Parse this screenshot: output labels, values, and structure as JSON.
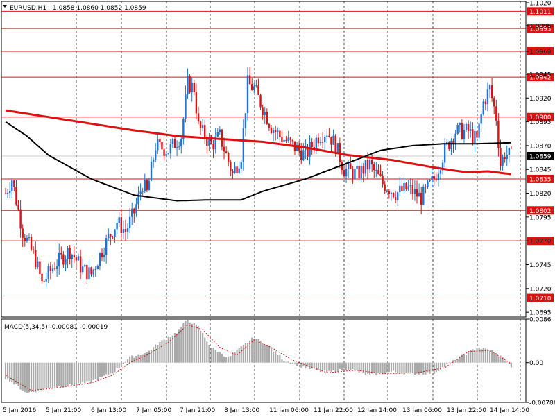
{
  "header": {
    "symbol": "EURUSD,H1",
    "ohlc": "1.0858 1.0860 1.0852 1.0859"
  },
  "indicator": {
    "label": "MACD(5,34,5) -0.00081 -0.00019"
  },
  "colors": {
    "bull": "#1e73d9",
    "bear": "#dd1111",
    "level": "#dd1111",
    "ma_slow": "#dd1111",
    "ma_fast": "#000000",
    "hist": "#aaaaaa",
    "signal": "#dd1111",
    "current_box": "#000000"
  },
  "chart_data": [
    {
      "type": "candlestick",
      "symbol": "EURUSD",
      "timeframe": "H1",
      "ylim": [
        1.069,
        1.102
      ],
      "y_ticks": [
        "1.1020",
        "1.0996",
        "1.0969",
        "1.0945",
        "1.0920",
        "1.0895",
        "1.0870",
        "1.0845",
        "1.0820",
        "1.0795",
        "1.0770",
        "1.0745",
        "1.0720",
        "1.0695"
      ],
      "x_ticks": [
        "5 Jan 2016",
        "5 Jan 21:00",
        "6 Jan 13:00",
        "7 Jan 05:00",
        "7 Jan 21:00",
        "8 Jan 13:00",
        "11 Jan 06:00",
        "11 Jan 22:00",
        "12 Jan 14:00",
        "13 Jan 06:00",
        "13 Jan 22:00",
        "14 Jan 14:00"
      ],
      "current_price": "1.0859",
      "levels": [
        {
          "label": "1.1011",
          "value": 1.1011
        },
        {
          "label": "1.0993",
          "value": 1.0993
        },
        {
          "label": "1.0969",
          "value": 1.0969
        },
        {
          "label": "1.0942",
          "value": 1.0942
        },
        {
          "label": "1.0900",
          "value": 1.09
        },
        {
          "label": "1.0835",
          "value": 1.0835
        },
        {
          "label": "1.0802",
          "value": 1.0802
        },
        {
          "label": "1.0770",
          "value": 1.077
        },
        {
          "label": "1.0710",
          "value": 1.071
        }
      ],
      "path_keypoints": [
        [
          0,
          1.082
        ],
        [
          3,
          1.0835
        ],
        [
          8,
          1.078
        ],
        [
          14,
          1.075
        ],
        [
          17,
          1.0725
        ],
        [
          23,
          1.0745
        ],
        [
          30,
          1.076
        ],
        [
          36,
          1.074
        ],
        [
          40,
          1.0735
        ],
        [
          45,
          1.076
        ],
        [
          52,
          1.079
        ],
        [
          56,
          1.078
        ],
        [
          60,
          1.08
        ],
        [
          64,
          1.083
        ],
        [
          66,
          1.082
        ],
        [
          70,
          1.087
        ],
        [
          76,
          1.0865
        ],
        [
          82,
          1.088
        ],
        [
          85,
          1.0935
        ],
        [
          88,
          1.093
        ],
        [
          90,
          1.089
        ],
        [
          96,
          1.087
        ],
        [
          100,
          1.088
        ],
        [
          103,
          1.086
        ],
        [
          106,
          1.084
        ],
        [
          110,
          1.086
        ],
        [
          113,
          1.0935
        ],
        [
          116,
          1.093
        ],
        [
          120,
          1.091
        ],
        [
          124,
          1.089
        ],
        [
          128,
          1.088
        ],
        [
          134,
          1.087
        ],
        [
          140,
          1.086
        ],
        [
          146,
          1.088
        ],
        [
          150,
          1.0885
        ],
        [
          154,
          1.087
        ],
        [
          158,
          1.0845
        ],
        [
          164,
          1.084
        ],
        [
          170,
          1.085
        ],
        [
          176,
          1.083
        ],
        [
          182,
          1.082
        ],
        [
          188,
          1.0825
        ],
        [
          194,
          1.0815
        ],
        [
          200,
          1.0835
        ],
        [
          205,
          1.0865
        ],
        [
          210,
          1.0885
        ],
        [
          216,
          1.0885
        ],
        [
          220,
          1.0875
        ],
        [
          223,
          1.0915
        ],
        [
          226,
          1.093
        ],
        [
          229,
          1.09
        ],
        [
          231,
          1.085
        ],
        [
          233,
          1.0862
        ],
        [
          236,
          1.0859
        ]
      ],
      "ma_slow": [
        [
          0,
          1.0907
        ],
        [
          20,
          1.09
        ],
        [
          40,
          1.0893
        ],
        [
          60,
          1.0886
        ],
        [
          80,
          1.088
        ],
        [
          100,
          1.0877
        ],
        [
          120,
          1.0874
        ],
        [
          140,
          1.0868
        ],
        [
          160,
          1.086
        ],
        [
          180,
          1.0855
        ],
        [
          200,
          1.0847
        ],
        [
          215,
          1.0842
        ],
        [
          225,
          1.0843
        ],
        [
          236,
          1.084
        ]
      ],
      "ma_fast": [
        [
          0,
          1.0895
        ],
        [
          10,
          1.088
        ],
        [
          20,
          1.086
        ],
        [
          40,
          1.0835
        ],
        [
          60,
          1.0818
        ],
        [
          80,
          1.0812
        ],
        [
          95,
          1.0813
        ],
        [
          110,
          1.0813
        ],
        [
          120,
          1.0822
        ],
        [
          140,
          1.0835
        ],
        [
          160,
          1.0852
        ],
        [
          175,
          1.0865
        ],
        [
          190,
          1.087
        ],
        [
          205,
          1.0872
        ],
        [
          220,
          1.0872
        ],
        [
          236,
          1.0873
        ]
      ]
    },
    {
      "type": "bar",
      "name": "MACD(5,34,5)",
      "ylim": [
        -0.00786,
        0.0086
      ],
      "y_ticks": [
        "0.0086",
        "0.00",
        "-0.00786"
      ],
      "hist_keypoints": [
        [
          0,
          -0.003
        ],
        [
          10,
          -0.006
        ],
        [
          20,
          -0.005
        ],
        [
          30,
          -0.0045
        ],
        [
          40,
          -0.0038
        ],
        [
          50,
          -0.002
        ],
        [
          58,
          0.001
        ],
        [
          66,
          0.002
        ],
        [
          72,
          0.004
        ],
        [
          80,
          0.006
        ],
        [
          85,
          0.0085
        ],
        [
          90,
          0.007
        ],
        [
          96,
          0.003
        ],
        [
          104,
          0.001
        ],
        [
          110,
          0.003
        ],
        [
          116,
          0.005
        ],
        [
          122,
          0.0035
        ],
        [
          130,
          0.0005
        ],
        [
          140,
          -0.001
        ],
        [
          150,
          -0.002
        ],
        [
          160,
          -0.0012
        ],
        [
          170,
          -0.0025
        ],
        [
          180,
          -0.0018
        ],
        [
          190,
          -0.0022
        ],
        [
          200,
          -0.002
        ],
        [
          210,
          0.0005
        ],
        [
          220,
          0.003
        ],
        [
          226,
          0.0025
        ],
        [
          232,
          0.001
        ],
        [
          236,
          -0.0008
        ]
      ],
      "signal_keypoints": [
        [
          0,
          -0.0025
        ],
        [
          12,
          -0.0055
        ],
        [
          24,
          -0.005
        ],
        [
          40,
          -0.004
        ],
        [
          50,
          -0.0025
        ],
        [
          58,
          0.0
        ],
        [
          66,
          0.0015
        ],
        [
          76,
          0.004
        ],
        [
          85,
          0.0075
        ],
        [
          92,
          0.0065
        ],
        [
          100,
          0.003
        ],
        [
          108,
          0.0015
        ],
        [
          116,
          0.0045
        ],
        [
          124,
          0.003
        ],
        [
          134,
          0.0005
        ],
        [
          150,
          -0.002
        ],
        [
          164,
          -0.0015
        ],
        [
          176,
          -0.0022
        ],
        [
          192,
          -0.002
        ],
        [
          205,
          -0.001
        ],
        [
          216,
          0.0022
        ],
        [
          226,
          0.0024
        ],
        [
          236,
          -0.0002
        ]
      ]
    }
  ]
}
